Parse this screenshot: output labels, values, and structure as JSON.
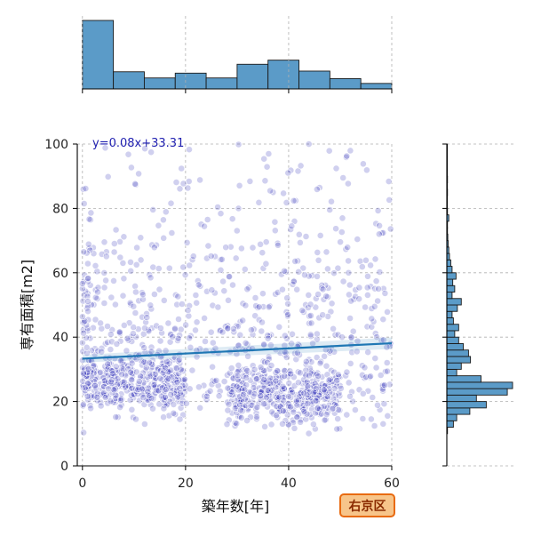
{
  "chart_data": {
    "type": "scatter",
    "title": "",
    "xlabel": "築年数[年]",
    "ylabel": "専有面積[m2]",
    "xlim": [
      -1,
      60
    ],
    "ylim": [
      0,
      100
    ],
    "x_ticks": [
      0,
      20,
      40,
      60
    ],
    "y_ticks": [
      0,
      20,
      40,
      60,
      80,
      100
    ],
    "grid": true,
    "regression": {
      "equation": "y=0.08x+33.31",
      "slope": 0.08,
      "intercept": 33.31
    },
    "badge": "右京区",
    "scatter_summary": {
      "point_count_approx": 1500,
      "clusters": [
        {
          "x_range": [
            0,
            20
          ],
          "y_range": [
            18,
            35
          ],
          "description": "dense band"
        },
        {
          "x_range": [
            28,
            50
          ],
          "y_range": [
            12,
            32
          ],
          "description": "dense band"
        },
        {
          "x_range": [
            0,
            60
          ],
          "y_range": [
            35,
            100
          ],
          "description": "sparse spread"
        }
      ]
    },
    "marginal_x_histogram": {
      "bin_edges": [
        0,
        6,
        12,
        18,
        24,
        30,
        36,
        42,
        48,
        54,
        60
      ],
      "relative_heights": [
        1.0,
        0.25,
        0.16,
        0.23,
        0.16,
        0.36,
        0.42,
        0.26,
        0.15,
        0.08
      ]
    },
    "marginal_y_histogram": {
      "bin_edges": [
        10,
        12,
        14,
        16,
        18,
        20,
        22,
        24,
        26,
        28,
        30,
        32,
        34,
        36,
        38,
        40,
        42,
        44,
        46,
        48,
        50,
        52,
        54,
        56,
        58,
        60,
        62,
        64,
        66,
        68,
        70,
        72,
        74,
        76,
        78,
        80,
        82,
        84,
        86,
        88,
        90,
        92,
        94,
        96,
        98,
        100
      ],
      "relative_heights": [
        0.01,
        0.1,
        0.15,
        0.35,
        0.6,
        0.45,
        0.92,
        1.0,
        0.52,
        0.15,
        0.22,
        0.36,
        0.33,
        0.25,
        0.18,
        0.12,
        0.18,
        0.1,
        0.08,
        0.16,
        0.22,
        0.08,
        0.12,
        0.09,
        0.14,
        0.08,
        0.06,
        0.04,
        0.03,
        0.02,
        0.015,
        0.01,
        0.01,
        0.03,
        0.01,
        0.005,
        0.005,
        0.01,
        0.005,
        0.01,
        0.005,
        0.003,
        0.003,
        0.003,
        0.003
      ]
    },
    "colors": {
      "points": "#2b2bb5",
      "regression_line": "#1f77b4",
      "histogram_fill": "#5b9bc8",
      "histogram_edge": "#1a1a1a",
      "badge_fill": "#f7c58a",
      "badge_border": "#e86a10",
      "badge_text": "#8a2a00",
      "grid": "#b0b0b0"
    }
  }
}
